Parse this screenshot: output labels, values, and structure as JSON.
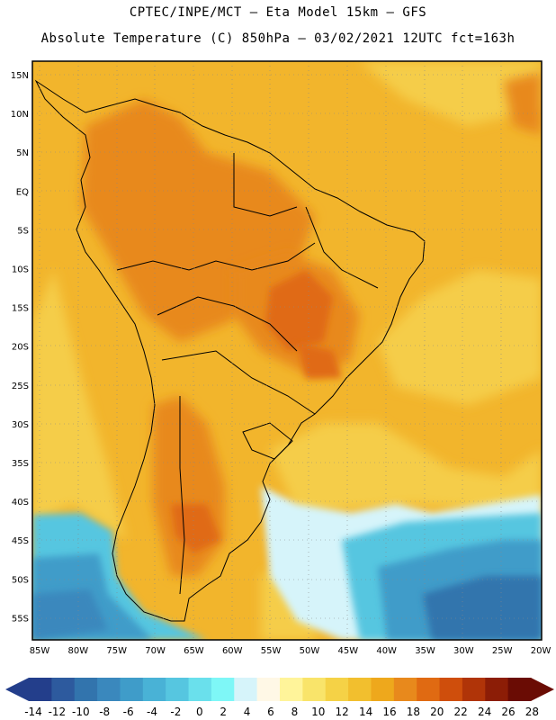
{
  "header": {
    "title_line1": "CPTEC/INPE/MCT –  Eta Model 15km – GFS",
    "title_line2": "Absolute Temperature (C) 850hPa – 03/02/2021 12UTC fct=163h"
  },
  "map": {
    "lat_ticks": [
      "15N",
      "10N",
      "5N",
      "EQ",
      "5S",
      "10S",
      "15S",
      "20S",
      "25S",
      "30S",
      "35S",
      "40S",
      "45S",
      "50S",
      "55S"
    ],
    "lon_ticks": [
      "85W",
      "80W",
      "75W",
      "70W",
      "65W",
      "60W",
      "55W",
      "50W",
      "45W",
      "40W",
      "35W",
      "30W",
      "25W",
      "20W"
    ]
  },
  "colorbar": {
    "labels": [
      "-14",
      "-12",
      "-10",
      "-8",
      "-6",
      "-4",
      "-2",
      "0",
      "2",
      "4",
      "6",
      "8",
      "10",
      "12",
      "14",
      "16",
      "18",
      "20",
      "22",
      "24",
      "26",
      "28"
    ],
    "colors": [
      "#233e8b",
      "#2d5a9e",
      "#3274ad",
      "#3a88bd",
      "#3f9cc9",
      "#49b2d6",
      "#56c6e0",
      "#6ae0ec",
      "#7ef7f7",
      "#d6f4fa",
      "#fff8e6",
      "#fff49a",
      "#f9e46a",
      "#f5d246",
      "#f2bf2e",
      "#eea81c",
      "#e8891c",
      "#e06a12",
      "#cf4e0c",
      "#b03408",
      "#8c1d06",
      "#6a0c04"
    ],
    "under_color": "#233e8b",
    "over_color": "#6a0c04"
  }
}
